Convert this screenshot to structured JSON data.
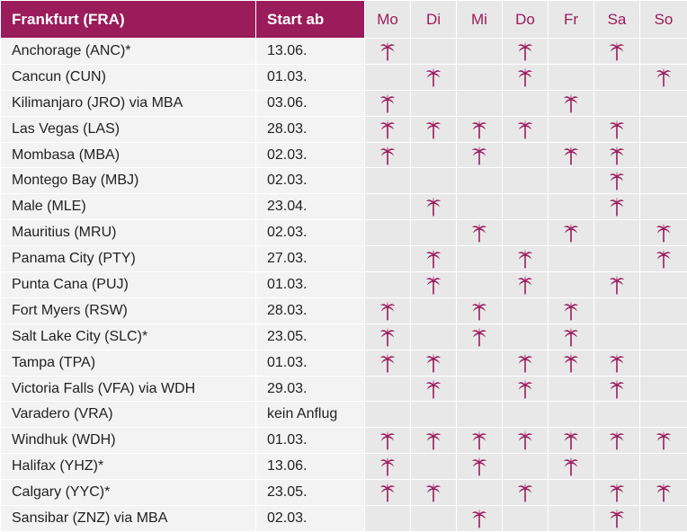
{
  "header": {
    "origin": "Frankfurt (FRA)",
    "start": "Start ab",
    "days": [
      "Mo",
      "Di",
      "Mi",
      "Do",
      "Fr",
      "Sa",
      "So"
    ]
  },
  "icon": "palm-tree-icon",
  "colors": {
    "accent": "#9a1c5b",
    "day_cell_bg": "#e8e8e8",
    "text_cell_bg": "#f3f3f3"
  },
  "rows": [
    {
      "destination": "Anchorage (ANC)*",
      "start": "13.06.",
      "days": [
        1,
        0,
        0,
        1,
        0,
        1,
        0
      ]
    },
    {
      "destination": "Cancun (CUN)",
      "start": "01.03.",
      "days": [
        0,
        1,
        0,
        1,
        0,
        0,
        1
      ]
    },
    {
      "destination": "Kilimanjaro (JRO) via MBA",
      "start": "03.06.",
      "days": [
        1,
        0,
        0,
        0,
        1,
        0,
        0
      ]
    },
    {
      "destination": "Las Vegas (LAS)",
      "start": "28.03.",
      "days": [
        1,
        1,
        1,
        1,
        0,
        1,
        0
      ]
    },
    {
      "destination": "Mombasa (MBA)",
      "start": "02.03.",
      "days": [
        1,
        0,
        1,
        0,
        1,
        1,
        0
      ]
    },
    {
      "destination": "Montego Bay (MBJ)",
      "start": "02.03.",
      "days": [
        0,
        0,
        0,
        0,
        0,
        1,
        0
      ]
    },
    {
      "destination": "Male (MLE)",
      "start": "23.04.",
      "days": [
        0,
        1,
        0,
        0,
        0,
        1,
        0
      ]
    },
    {
      "destination": "Mauritius (MRU)",
      "start": "02.03.",
      "days": [
        0,
        0,
        1,
        0,
        1,
        0,
        1
      ]
    },
    {
      "destination": "Panama City (PTY)",
      "start": "27.03.",
      "days": [
        0,
        1,
        0,
        1,
        0,
        0,
        1
      ]
    },
    {
      "destination": "Punta Cana (PUJ)",
      "start": "01.03.",
      "days": [
        0,
        1,
        0,
        1,
        0,
        1,
        0
      ]
    },
    {
      "destination": "Fort Myers (RSW)",
      "start": "28.03.",
      "days": [
        1,
        0,
        1,
        0,
        1,
        0,
        0
      ]
    },
    {
      "destination": "Salt Lake City (SLC)*",
      "start": "23.05.",
      "days": [
        1,
        0,
        1,
        0,
        1,
        0,
        0
      ]
    },
    {
      "destination": "Tampa (TPA)",
      "start": "01.03.",
      "days": [
        1,
        1,
        0,
        1,
        1,
        1,
        0
      ]
    },
    {
      "destination": "Victoria Falls (VFA) via WDH",
      "start": "29.03.",
      "days": [
        0,
        1,
        0,
        1,
        0,
        1,
        0
      ]
    },
    {
      "destination": "Varadero (VRA)",
      "start": "kein Anflug",
      "days": [
        0,
        0,
        0,
        0,
        0,
        0,
        0
      ]
    },
    {
      "destination": "Windhuk (WDH)",
      "start": "01.03.",
      "days": [
        1,
        1,
        1,
        1,
        1,
        1,
        1
      ]
    },
    {
      "destination": "Halifax (YHZ)*",
      "start": "13.06.",
      "days": [
        1,
        0,
        1,
        0,
        1,
        0,
        0
      ]
    },
    {
      "destination": "Calgary (YYC)*",
      "start": "23.05.",
      "days": [
        1,
        1,
        0,
        1,
        0,
        1,
        1
      ]
    },
    {
      "destination": "Sansibar (ZNZ) via MBA",
      "start": "02.03.",
      "days": [
        0,
        0,
        1,
        0,
        0,
        1,
        0
      ]
    }
  ]
}
